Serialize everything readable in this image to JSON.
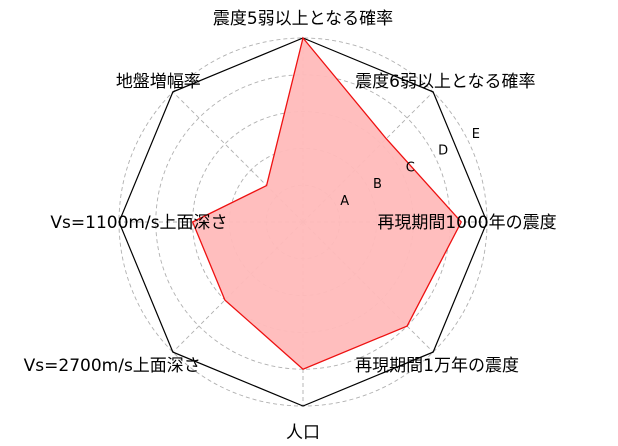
{
  "chart_data": {
    "type": "radar",
    "axes": [
      "震度5弱以上となる確率",
      "震度6弱以上となる確率",
      "再現期間1000年の震度",
      "再現期間1万年の震度",
      "人口",
      "Vs=2700m/s上面深さ",
      "Vs=1100m/s上面深さ",
      "地盤増幅率"
    ],
    "levels": [
      "A",
      "B",
      "C",
      "D",
      "E"
    ],
    "series": [
      {
        "values": [
          5.0,
          3.2,
          4.3,
          4.0,
          4.0,
          3.0,
          3.0,
          1.4
        ]
      }
    ],
    "range": [
      0,
      5
    ],
    "grid": true,
    "colors": {
      "line": "#ee1111",
      "fill": "#ffbbbb",
      "frame": "#000000",
      "grid": "#b0b0b0"
    }
  }
}
